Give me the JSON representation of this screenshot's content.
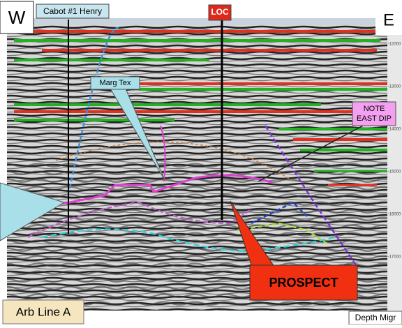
{
  "labels": {
    "west": "W",
    "east": "E",
    "well": "Cabot #1 Henry",
    "location": "LOC",
    "formation": "Marg Tex",
    "note": [
      "NOTE",
      "EAST DIP"
    ],
    "prospect": "PROSPECT",
    "line_name": "Arb Line A",
    "section_type": "Depth Migr"
  },
  "depth_labels": [
    "-12000",
    "-13000",
    "-14000",
    "-15000",
    "-16000",
    "-17000"
  ]
}
